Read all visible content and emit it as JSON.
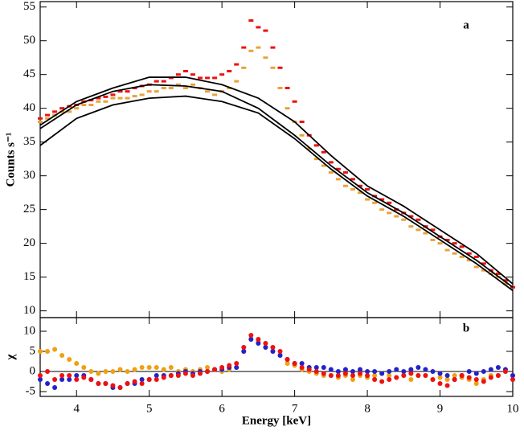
{
  "chart_data": [
    {
      "type": "scatter",
      "ylabel": "Counts s⁻¹",
      "annotation": "a",
      "xlim": [
        3.5,
        10
      ],
      "ylim": [
        9,
        55.8
      ],
      "yticks": [
        10,
        15,
        20,
        25,
        30,
        35,
        40,
        45,
        50,
        55
      ],
      "series": [
        {
          "type": "scatter",
          "color": "#e8a33a",
          "x": [
            3.5,
            3.6,
            3.7,
            3.8,
            3.9,
            4.0,
            4.1,
            4.2,
            4.3,
            4.4,
            4.5,
            4.6,
            4.7,
            4.8,
            4.9,
            5.0,
            5.1,
            5.2,
            5.3,
            5.4,
            5.5,
            5.6,
            5.7,
            5.8,
            5.9,
            6.0,
            6.1,
            6.2,
            6.3,
            6.4,
            6.5,
            6.6,
            6.7,
            6.8,
            6.9,
            7.0,
            7.1,
            7.2,
            7.3,
            7.4,
            7.5,
            7.6,
            7.7,
            7.8,
            7.9,
            8.0,
            8.1,
            8.2,
            8.3,
            8.4,
            8.5,
            8.6,
            8.7,
            8.8,
            8.9,
            9.0,
            9.1,
            9.2,
            9.3,
            9.4,
            9.5,
            9.6,
            9.7,
            9.8,
            9.9,
            10.0
          ],
          "values": [
            38,
            38.5,
            39,
            39.5,
            39.5,
            40,
            40.5,
            40.5,
            41,
            41,
            41.5,
            41.5,
            41.5,
            41.8,
            42,
            42.5,
            42.5,
            43,
            43,
            43.5,
            43,
            43.5,
            43,
            42.5,
            42,
            42.5,
            43,
            44,
            46,
            48.5,
            49,
            47.5,
            46,
            43,
            40,
            38,
            36,
            34,
            32.5,
            31.5,
            30.5,
            29.5,
            28.5,
            28,
            27.5,
            26.5,
            26,
            25,
            24.5,
            24,
            23.5,
            22.5,
            22,
            21.5,
            20.5,
            20,
            19,
            18.5,
            18,
            17.5,
            16.5,
            16,
            15.5,
            15,
            14,
            13.5
          ]
        },
        {
          "type": "scatter",
          "color": "#ee1111",
          "x": [
            3.5,
            3.6,
            3.7,
            3.8,
            3.9,
            4.0,
            4.1,
            4.2,
            4.3,
            4.4,
            4.5,
            4.6,
            4.7,
            4.8,
            4.9,
            5.0,
            5.1,
            5.2,
            5.3,
            5.4,
            5.5,
            5.6,
            5.7,
            5.8,
            5.9,
            6.0,
            6.1,
            6.2,
            6.3,
            6.4,
            6.5,
            6.6,
            6.7,
            6.8,
            6.9,
            7.0,
            7.1,
            7.2,
            7.3,
            7.4,
            7.5,
            7.6,
            7.7,
            7.8,
            7.9,
            8.0,
            8.1,
            8.2,
            8.3,
            8.4,
            8.5,
            8.6,
            8.7,
            8.8,
            8.9,
            9.0,
            9.1,
            9.2,
            9.3,
            9.4,
            9.5,
            9.6,
            9.7,
            9.8,
            9.9,
            10.0
          ],
          "values": [
            38.5,
            39,
            39.5,
            40,
            40.3,
            40.5,
            41,
            41.2,
            41.5,
            41.7,
            42,
            42.5,
            42.5,
            43,
            43.3,
            43.5,
            44,
            44,
            44.5,
            45,
            45.5,
            45,
            44.5,
            44.5,
            44.5,
            45,
            45.5,
            46.5,
            49,
            53,
            52,
            51.5,
            49,
            46,
            43,
            41,
            38,
            36,
            34.5,
            33.5,
            32,
            31,
            30.5,
            29.5,
            28.5,
            28,
            27,
            26.5,
            26,
            25,
            24.5,
            24,
            23.5,
            22.5,
            22,
            21,
            20.5,
            20,
            19.5,
            18.5,
            18,
            17,
            16,
            15.5,
            14.5,
            13.5
          ]
        },
        {
          "type": "line",
          "color": "#000000",
          "x": [
            3.5,
            4,
            4.5,
            5,
            5.5,
            6,
            6.5,
            7,
            7.5,
            8,
            8.5,
            9,
            9.5,
            10
          ],
          "values": [
            37.5,
            41,
            43,
            44.6,
            44.6,
            43.5,
            41.5,
            38,
            33,
            28.5,
            25.5,
            22,
            18.5,
            14
          ]
        },
        {
          "type": "line",
          "color": "#000000",
          "x": [
            3.5,
            4,
            4.5,
            5,
            5.5,
            6,
            6.5,
            7,
            7.5,
            8,
            8.5,
            9,
            9.5,
            10
          ],
          "values": [
            37,
            40.5,
            42.5,
            43.5,
            43.3,
            42.5,
            40,
            36,
            31.5,
            27.5,
            24.5,
            21,
            17.5,
            13.5
          ]
        },
        {
          "type": "line",
          "color": "#000000",
          "x": [
            3.5,
            4,
            4.5,
            5,
            5.5,
            6,
            6.5,
            7,
            7.5,
            8,
            8.5,
            9,
            9.5,
            10
          ],
          "values": [
            34.5,
            38.5,
            40.5,
            41.5,
            41.8,
            41,
            39.3,
            35.5,
            31,
            27,
            24,
            20.5,
            17,
            13
          ]
        }
      ]
    },
    {
      "type": "scatter",
      "xlabel": "Energy [keV]",
      "ylabel": "χ",
      "annotation": "b",
      "xlim": [
        3.5,
        10
      ],
      "xticks": [
        4,
        5,
        6,
        7,
        8,
        9,
        10
      ],
      "ylim": [
        -6.2,
        13.4
      ],
      "yticks": [
        -5,
        0,
        5,
        10
      ],
      "x": [
        3.5,
        3.6,
        3.7,
        3.8,
        3.9,
        4.0,
        4.1,
        4.2,
        4.3,
        4.4,
        4.5,
        4.6,
        4.7,
        4.8,
        4.9,
        5.0,
        5.1,
        5.2,
        5.3,
        5.4,
        5.5,
        5.6,
        5.7,
        5.8,
        5.9,
        6.0,
        6.1,
        6.2,
        6.3,
        6.4,
        6.5,
        6.6,
        6.7,
        6.8,
        6.9,
        7.0,
        7.1,
        7.2,
        7.3,
        7.4,
        7.5,
        7.6,
        7.7,
        7.8,
        7.9,
        8.0,
        8.1,
        8.2,
        8.3,
        8.4,
        8.5,
        8.6,
        8.7,
        8.8,
        8.9,
        9.0,
        9.1,
        9.2,
        9.3,
        9.4,
        9.5,
        9.6,
        9.7,
        9.8,
        9.9,
        10.0
      ],
      "series": [
        {
          "color": "#f0a010",
          "values": [
            5,
            5,
            5.5,
            4,
            3,
            2,
            1,
            0,
            -0.5,
            0,
            0,
            0.5,
            0,
            0.5,
            1,
            1,
            1,
            0.5,
            1,
            0,
            0.5,
            0,
            0.5,
            1,
            0.5,
            0,
            0.5,
            1,
            5,
            8,
            7.5,
            6,
            5,
            4,
            2,
            1.5,
            0.5,
            0,
            -0.5,
            -1,
            -1,
            -1.5,
            -1,
            -2,
            -1,
            -1.5,
            -1,
            -0.5,
            -1,
            -1.5,
            -1,
            -2,
            -1,
            -1,
            -2,
            -1.5,
            -2,
            -1,
            -1.5,
            -2,
            -3,
            -2,
            -1,
            -1,
            0,
            -1
          ]
        },
        {
          "color": "#2222cc",
          "values": [
            -2,
            -3,
            -4,
            -2,
            -2,
            -1,
            -1,
            -2,
            -3,
            -3,
            -4,
            -4,
            -3,
            -3,
            -2,
            -2,
            -1,
            -1,
            -1,
            -0.5,
            0,
            -0.5,
            0,
            0,
            0.5,
            0.5,
            1,
            1,
            5,
            8,
            7,
            6,
            5,
            4,
            3,
            2,
            2,
            1,
            1,
            1,
            0.5,
            0,
            0.5,
            0,
            0.5,
            0,
            0,
            -0.5,
            0,
            0.5,
            0,
            0.5,
            1,
            0.5,
            0,
            -0.5,
            -1,
            -2,
            -1,
            0,
            -0.5,
            0,
            0.5,
            1,
            0.5,
            -1
          ]
        },
        {
          "color": "#ee1111",
          "values": [
            -1,
            0,
            -2,
            -1,
            -1,
            -2,
            -1.5,
            -2,
            -3,
            -3,
            -3.5,
            -4,
            -3,
            -2.5,
            -3,
            -2,
            -2,
            -1.5,
            -1,
            -1,
            -0.5,
            -1,
            -0.5,
            0,
            0.5,
            1,
            1.5,
            2,
            6,
            9,
            8,
            7,
            6,
            5,
            3,
            2,
            1,
            0.5,
            0,
            -0.5,
            -1,
            -1,
            -0.5,
            -1,
            -0.5,
            -1,
            -2,
            -2.5,
            -2,
            -1.5,
            -1,
            -0.5,
            -1,
            -1,
            -2,
            -3,
            -3.5,
            -2,
            -1,
            -1.5,
            -2,
            -2.5,
            -1.5,
            -1,
            0,
            -2
          ]
        }
      ]
    }
  ]
}
